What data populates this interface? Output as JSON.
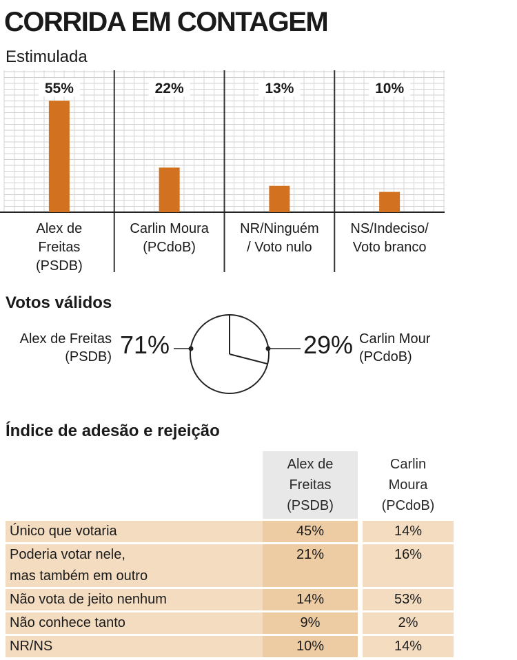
{
  "title": "CORRIDA EM CONTAGEM",
  "stimulated": {
    "subtitle": "Estimulada",
    "chart_data": {
      "type": "bar",
      "categories": [
        [
          "Alex de",
          "Freitas",
          "(PSDB)"
        ],
        [
          "Carlin Moura",
          "(PCdoB)"
        ],
        [
          "NR/Ninguém",
          "/ Voto nulo"
        ],
        [
          "NS/Indeciso/",
          "Voto branco"
        ]
      ],
      "values": [
        55,
        22,
        13,
        10
      ],
      "value_labels": [
        "55%",
        "22%",
        "13%",
        "10%"
      ],
      "ylim": [
        0,
        70
      ],
      "grid": true,
      "bar_color": "#d2711f"
    }
  },
  "valid": {
    "heading": "Votos válidos",
    "chart_data": {
      "type": "pie",
      "slices": [
        {
          "label": [
            "Alex de Freitas",
            "(PSDB)"
          ],
          "value": 71,
          "value_label": "71%"
        },
        {
          "label": [
            "Carlin Mour",
            "(PCdoB)"
          ],
          "value": 29,
          "value_label": "29%"
        }
      ]
    }
  },
  "adesao": {
    "heading": "Índice de adesão e rejeição",
    "chart_data": {
      "type": "table",
      "columns": [
        [
          "Alex de",
          "Freitas",
          "(PSDB)"
        ],
        [
          "Carlin",
          "Moura",
          "(PCdoB)"
        ]
      ],
      "rows": [
        {
          "label": [
            "Único que votaria"
          ],
          "values": [
            "45%",
            "14%"
          ]
        },
        {
          "label": [
            "Poderia votar nele,",
            "mas também em outro"
          ],
          "values": [
            "21%",
            "16%"
          ]
        },
        {
          "label": [
            "Não vota de jeito nenhum"
          ],
          "values": [
            "14%",
            "53%"
          ]
        },
        {
          "label": [
            "Não conhece tanto"
          ],
          "values": [
            "9%",
            "2%"
          ]
        },
        {
          "label": [
            "NR/NS"
          ],
          "values": [
            "10%",
            "14%"
          ]
        }
      ]
    }
  },
  "colors": {
    "bar": "#d2711f",
    "row_light": "#f3dcc0",
    "row_dark": "#eecca3",
    "header_gray": "#e8e8e8"
  }
}
